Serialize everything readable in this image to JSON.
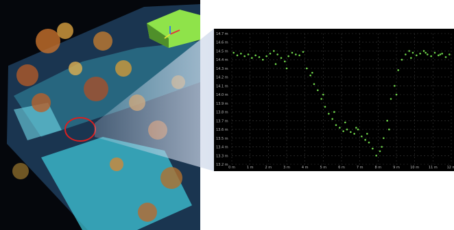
{
  "colors": {
    "background": "#ffffff",
    "lidar_backdrop": "#05070c",
    "ground_cyan": "#3fc4d6",
    "vegetation_orange": "#c8722c",
    "building_roof": "#8fe34a",
    "marker_circle": "#d92020",
    "profile_panel": "#000000",
    "profile_points": "#6fd64a",
    "profile_grid": "#3d3d3d",
    "callout_wedge": "#cfd9ea"
  },
  "scene": {
    "marker_icon": "red-circle-marker",
    "axis_gizmo_icon": "axis-gizmo-icon"
  },
  "chart_data": {
    "type": "scatter",
    "x_tick_labels": [
      "0 m",
      "1 m",
      "2 m",
      "3 m",
      "4 m",
      "5 m",
      "6 m",
      "7 m",
      "8 m",
      "9 m",
      "10 m",
      "11 m",
      "12 m"
    ],
    "y_tick_labels": [
      "14.7 m",
      "14.6 m",
      "14.5 m",
      "14.4 m",
      "14.3 m",
      "14.2 m",
      "14.1 m",
      "14.0 m",
      "13.9 m",
      "13.8 m",
      "13.7 m",
      "13.6 m",
      "13.5 m",
      "13.4 m",
      "13.3 m",
      "13.2 m"
    ],
    "xlim": [
      0,
      12
    ],
    "ylim": [
      13.2,
      14.7
    ],
    "grid": true,
    "series": [
      {
        "color": "#6fd64a",
        "x": [
          0.1,
          0.3,
          0.5,
          0.7,
          0.9,
          1.1,
          1.3,
          1.5,
          1.7,
          1.9,
          2.1,
          2.3,
          2.5,
          2.7,
          2.9,
          3.1,
          3.3,
          3.5,
          3.7,
          3.9,
          4.1,
          4.3,
          4.5,
          4.7,
          4.9,
          5.1,
          5.3,
          5.5,
          5.7,
          5.9,
          6.1,
          6.3,
          6.5,
          6.7,
          6.9,
          7.1,
          7.3,
          7.5,
          7.7,
          7.9,
          8.1,
          8.3,
          8.5,
          8.7,
          8.9,
          9.1,
          9.3,
          9.5,
          9.7,
          9.9,
          10.1,
          10.3,
          10.5,
          10.7,
          10.9,
          11.1,
          11.3,
          11.5,
          11.7,
          11.9,
          2.4,
          3.0,
          4.4,
          5.0,
          5.6,
          6.2,
          6.8,
          7.4,
          8.2,
          8.6,
          9.0,
          9.8,
          10.6,
          11.4
        ],
        "y": [
          14.48,
          14.45,
          14.47,
          14.44,
          14.46,
          14.42,
          14.45,
          14.43,
          14.4,
          14.44,
          14.47,
          14.5,
          14.46,
          14.42,
          14.38,
          14.44,
          14.48,
          14.46,
          14.45,
          14.49,
          14.3,
          14.22,
          14.12,
          14.05,
          13.95,
          13.86,
          13.78,
          13.72,
          13.65,
          13.62,
          13.58,
          13.6,
          13.57,
          13.55,
          13.6,
          13.52,
          13.48,
          13.45,
          13.38,
          13.3,
          13.35,
          13.5,
          13.7,
          13.95,
          14.1,
          14.28,
          14.4,
          14.46,
          14.5,
          14.48,
          14.45,
          14.47,
          14.5,
          14.46,
          14.44,
          14.48,
          14.45,
          14.47,
          14.43,
          14.46,
          14.35,
          14.3,
          14.25,
          14.0,
          13.8,
          13.68,
          13.62,
          13.55,
          13.4,
          13.6,
          14.0,
          14.42,
          14.48,
          14.46
        ]
      }
    ]
  }
}
